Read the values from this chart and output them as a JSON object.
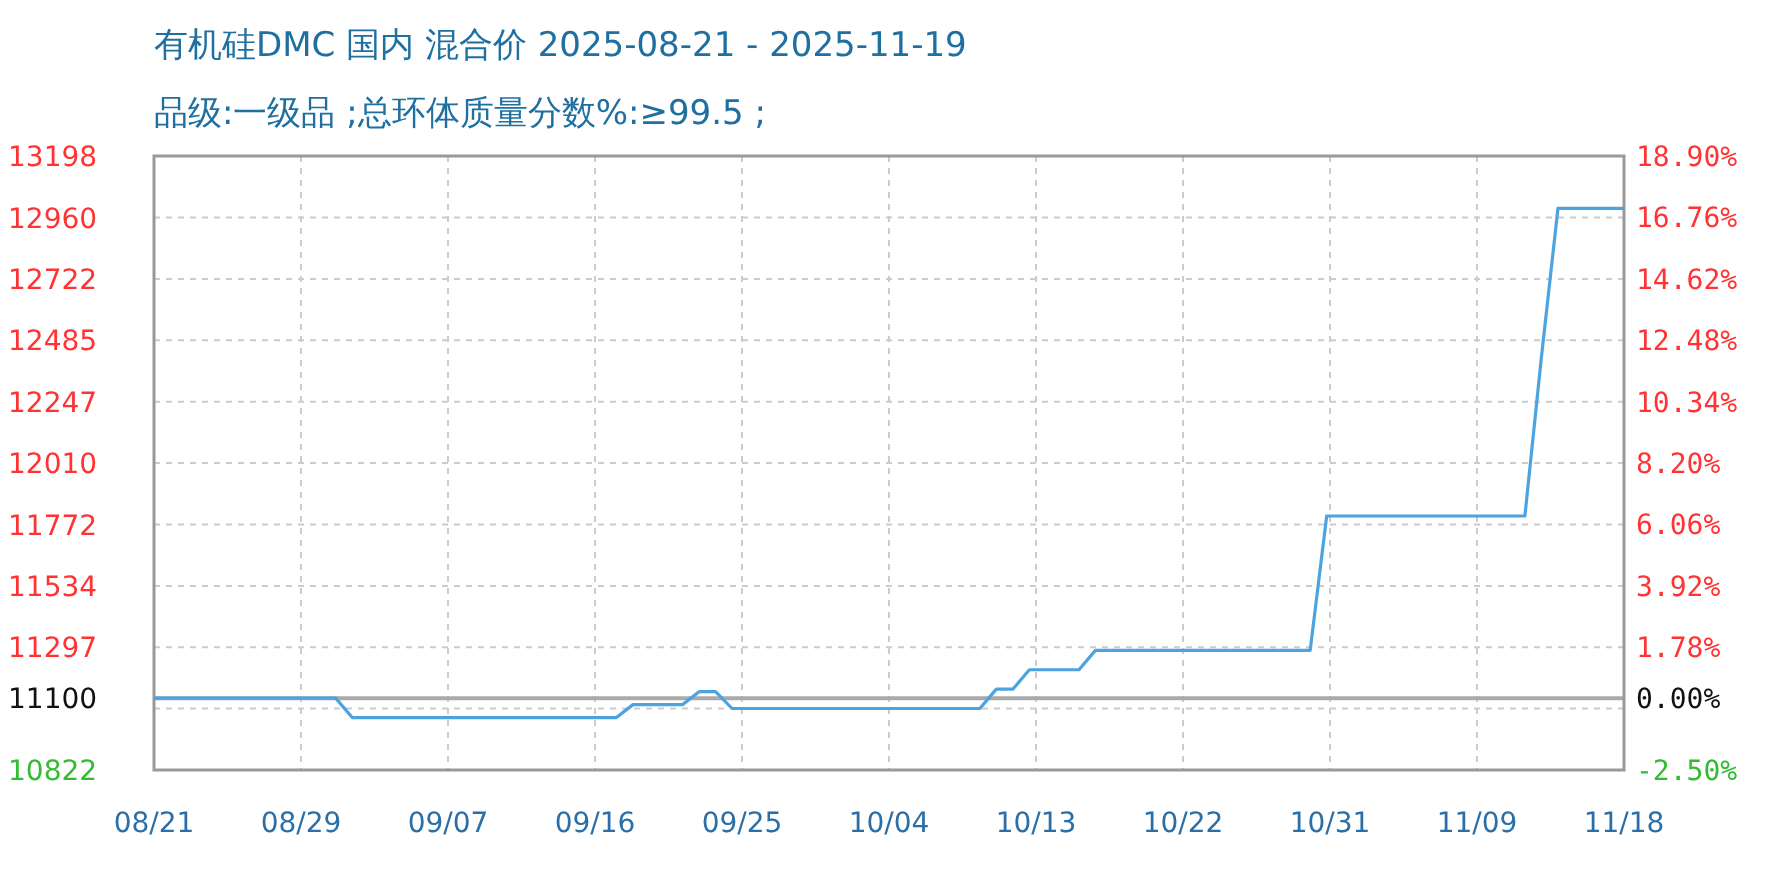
{
  "chart_data": {
    "type": "line",
    "title": "有机硅DMC 国内 混合价 2025-08-21 - 2025-11-19",
    "subtitle": "品级:一级品 ;总环体质量分数%:≥99.5 ;",
    "x": [
      "2025-08-21",
      "2025-09-01",
      "2025-09-02",
      "2025-09-18",
      "2025-09-19",
      "2025-09-22",
      "2025-09-23",
      "2025-09-24",
      "2025-09-25",
      "2025-10-10",
      "2025-10-11",
      "2025-10-12",
      "2025-10-13",
      "2025-10-16",
      "2025-10-17",
      "2025-10-30",
      "2025-10-31",
      "2025-11-12",
      "2025-11-13",
      "2025-11-14",
      "2025-11-18"
    ],
    "series": [
      {
        "color": "#4ba3e0",
        "values": [
          11100,
          11100,
          11025,
          11025,
          11075,
          11075,
          11125,
          11125,
          11060,
          11060,
          11135,
          11135,
          11210,
          11210,
          11285,
          11285,
          11805,
          11805,
          12420,
          12995,
          12995
        ]
      }
    ],
    "xlim": [
      "2025-08-21",
      "2025-11-18"
    ],
    "xticks": [
      {
        "value": "2025-08-21",
        "label": "08/21"
      },
      {
        "value": "2025-08-29T21:36",
        "label": "08/29"
      },
      {
        "value": "2025-09-07T19:12",
        "label": "09/07"
      },
      {
        "value": "2025-09-16T16:48",
        "label": "09/16"
      },
      {
        "value": "2025-09-25T14:24",
        "label": "09/25"
      },
      {
        "value": "2025-10-04T12:00",
        "label": "10/04"
      },
      {
        "value": "2025-10-13T09:36",
        "label": "10/13"
      },
      {
        "value": "2025-10-22T07:12",
        "label": "10/22"
      },
      {
        "value": "2025-10-31T04:48",
        "label": "10/31"
      },
      {
        "value": "2025-11-09T02:24",
        "label": "11/09"
      },
      {
        "value": "2025-11-18",
        "label": "11/18"
      }
    ],
    "ylim": [
      10822,
      13198
    ],
    "yticks": [
      10822,
      {
        "value": 11059.6,
        "label": null
      },
      11100,
      11297,
      11534,
      11772,
      12010,
      12247,
      12485,
      12722,
      12960,
      13198
    ],
    "y2lim": [
      -2.5,
      18.9
    ],
    "y2ticks": [
      {
        "value": -2.5,
        "label": "-2.50%"
      },
      {
        "value": 0,
        "label": "0.00%"
      },
      {
        "value": 1.78,
        "label": "1.78%"
      },
      {
        "value": 3.92,
        "label": "3.92%"
      },
      {
        "value": 6.06,
        "label": "6.06%"
      },
      {
        "value": 8.2,
        "label": "8.20%"
      },
      {
        "value": 10.34,
        "label": "10.34%"
      },
      {
        "value": 12.48,
        "label": "12.48%"
      },
      {
        "value": 14.62,
        "label": "14.62%"
      },
      {
        "value": 16.76,
        "label": "16.76%"
      },
      {
        "value": 18.9,
        "label": "18.90%"
      }
    ],
    "ref_lines": [
      {
        "axis": "y",
        "value": 11100,
        "color": "#aaaaaa"
      }
    ],
    "grid": true,
    "marker": "none",
    "line_style": "solid"
  }
}
